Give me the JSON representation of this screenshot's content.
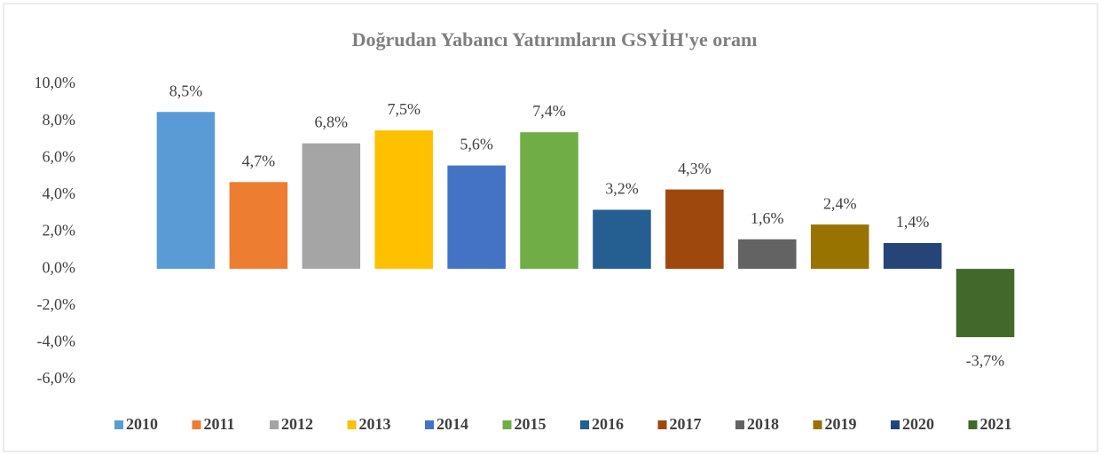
{
  "chart_data": {
    "type": "bar",
    "title": "Doğrudan Yabancı Yatırımların GSYİH'ye oranı",
    "ylim": [
      -6,
      10
    ],
    "yticks": [
      {
        "value": -6,
        "label": "-6,0%"
      },
      {
        "value": -4,
        "label": "-4,0%"
      },
      {
        "value": -2,
        "label": "-2,0%"
      },
      {
        "value": 0,
        "label": "0,0%"
      },
      {
        "value": 2,
        "label": "2,0%"
      },
      {
        "value": 4,
        "label": "4,0%"
      },
      {
        "value": 6,
        "label": "6,0%"
      },
      {
        "value": 8,
        "label": "8,0%"
      },
      {
        "value": 10,
        "label": "10,0%"
      }
    ],
    "grid": false,
    "legend": "bottom",
    "series": [
      {
        "name": "2010",
        "color": "#5b9bd5",
        "values": [
          8.5
        ],
        "value_labels": [
          "8,5%"
        ]
      },
      {
        "name": "2011",
        "color": "#ed7d31",
        "values": [
          4.7
        ],
        "value_labels": [
          "4,7%"
        ]
      },
      {
        "name": "2012",
        "color": "#a5a5a5",
        "values": [
          6.8
        ],
        "value_labels": [
          "6,8%"
        ]
      },
      {
        "name": "2013",
        "color": "#ffc000",
        "values": [
          7.5
        ],
        "value_labels": [
          "7,5%"
        ]
      },
      {
        "name": "2014",
        "color": "#4472c4",
        "values": [
          5.6
        ],
        "value_labels": [
          "5,6%"
        ]
      },
      {
        "name": "2015",
        "color": "#70ad47",
        "values": [
          7.4
        ],
        "value_labels": [
          "7,4%"
        ]
      },
      {
        "name": "2016",
        "color": "#255e91",
        "values": [
          3.2
        ],
        "value_labels": [
          "3,2%"
        ]
      },
      {
        "name": "2017",
        "color": "#9e480e",
        "values": [
          4.3
        ],
        "value_labels": [
          "4,3%"
        ]
      },
      {
        "name": "2018",
        "color": "#636363",
        "values": [
          1.6
        ],
        "value_labels": [
          "1,6%"
        ]
      },
      {
        "name": "2019",
        "color": "#997300",
        "values": [
          2.4
        ],
        "value_labels": [
          "2,4%"
        ]
      },
      {
        "name": "2020",
        "color": "#264478",
        "values": [
          1.4
        ],
        "value_labels": [
          "1,4%"
        ]
      },
      {
        "name": "2021",
        "color": "#43682b",
        "values": [
          -3.7
        ],
        "value_labels": [
          "-3,7%"
        ]
      }
    ]
  }
}
